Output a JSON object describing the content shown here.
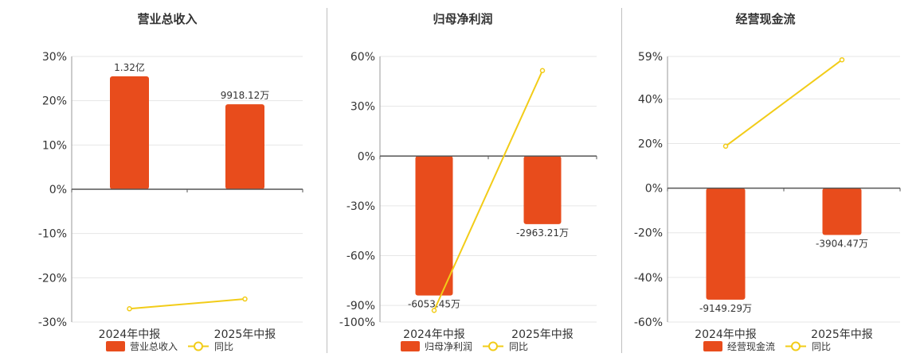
{
  "charts": [
    {
      "title": "营业总收入",
      "categories": [
        "2024年中报",
        "2025年中报"
      ],
      "ylim": [
        -30,
        30
      ],
      "ticks": [
        30,
        20,
        10,
        0,
        -10,
        -20,
        -30
      ],
      "tick_labels": [
        "30%",
        "20%",
        "10%",
        "0%",
        "-10%",
        "-20%",
        "-30%"
      ],
      "bar_values": [
        25.5,
        19.2
      ],
      "bar_labels": [
        "1.32亿",
        "9918.12万"
      ],
      "bar_label_pos": [
        "above",
        "above"
      ],
      "line_values": [
        -27.0,
        -24.8
      ],
      "legend": {
        "bar": "营业总收入",
        "line": "同比"
      }
    },
    {
      "title": "归母净利润",
      "categories": [
        "2024年中报",
        "2025年中报"
      ],
      "ylim": [
        -100,
        60
      ],
      "ticks": [
        60,
        30,
        0,
        -30,
        -60,
        -90,
        -100
      ],
      "tick_labels": [
        "60%",
        "30%",
        "0%",
        "-30%",
        "-60%",
        "-90%",
        "-100%"
      ],
      "bar_values": [
        -84,
        -41
      ],
      "bar_labels": [
        "-6053.45万",
        "-2963.21万"
      ],
      "bar_label_pos": [
        "below",
        "below"
      ],
      "line_values": [
        -93.0,
        51.5
      ],
      "legend": {
        "bar": "归母净利润",
        "line": "同比"
      }
    },
    {
      "title": "经营现金流",
      "categories": [
        "2024年中报",
        "2025年中报"
      ],
      "ylim": [
        -60,
        59
      ],
      "ticks": [
        59,
        40,
        20,
        0,
        -20,
        -40,
        -60
      ],
      "tick_labels": [
        "59%",
        "40%",
        "20%",
        "0%",
        "-20%",
        "-40%",
        "-60%"
      ],
      "bar_values": [
        -50,
        -21
      ],
      "bar_labels": [
        "-9149.29万",
        "-3904.47万"
      ],
      "bar_label_pos": [
        "below",
        "below"
      ],
      "line_values": [
        18.8,
        57.5
      ],
      "legend": {
        "bar": "经营现金流",
        "line": "同比"
      }
    }
  ],
  "chart_data": [
    {
      "type": "bar",
      "title": "营业总收入",
      "categories": [
        "2024年中报",
        "2025年中报"
      ],
      "series": [
        {
          "name": "营业总收入",
          "type": "bar",
          "values": [
            25.5,
            19.2
          ],
          "labels": [
            "1.32亿",
            "9918.12万"
          ]
        },
        {
          "name": "同比",
          "type": "line",
          "values": [
            -27.0,
            -24.8
          ]
        }
      ],
      "ylim": [
        -30,
        30
      ],
      "grid": true,
      "legend": "bottom"
    },
    {
      "type": "bar",
      "title": "归母净利润",
      "categories": [
        "2024年中报",
        "2025年中报"
      ],
      "series": [
        {
          "name": "归母净利润",
          "type": "bar",
          "values": [
            -84,
            -41
          ],
          "labels": [
            "-6053.45万",
            "-2963.21万"
          ]
        },
        {
          "name": "同比",
          "type": "line",
          "values": [
            -93.0,
            51.5
          ]
        }
      ],
      "ylim": [
        -100,
        60
      ],
      "grid": true,
      "legend": "bottom"
    },
    {
      "type": "bar",
      "title": "经营现金流",
      "categories": [
        "2024年中报",
        "2025年中报"
      ],
      "series": [
        {
          "name": "经营现金流",
          "type": "bar",
          "values": [
            -50,
            -21
          ],
          "labels": [
            "-9149.29万",
            "-3904.47万"
          ]
        },
        {
          "name": "同比",
          "type": "line",
          "values": [
            18.8,
            57.5
          ]
        }
      ],
      "ylim": [
        -60,
        59
      ],
      "grid": true,
      "legend": "bottom"
    }
  ],
  "colors": {
    "bar": "#e84c1c",
    "line": "#f2cc18",
    "grid": "#e6e6e6",
    "axis": "#555555",
    "text": "#333333"
  }
}
